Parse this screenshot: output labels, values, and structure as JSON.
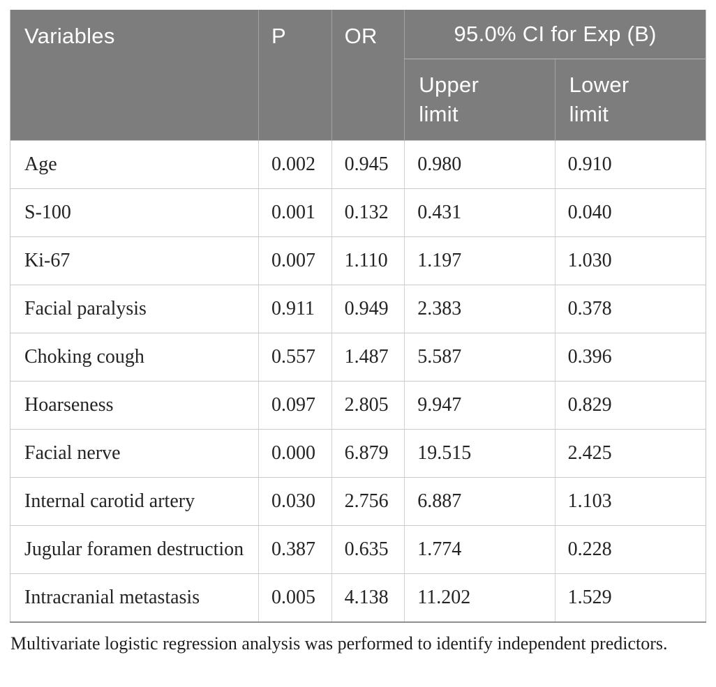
{
  "table": {
    "header": {
      "variables": "Variables",
      "p": "P",
      "or": "OR",
      "ci": "95.0% CI for Exp (B)",
      "upper": "Upper limit",
      "lower": "Lower limit"
    },
    "rows": [
      {
        "variable": "Age",
        "p": "0.002",
        "or": "0.945",
        "upper": "0.980",
        "lower": "0.910"
      },
      {
        "variable": "S-100",
        "p": "0.001",
        "or": "0.132",
        "upper": "0.431",
        "lower": "0.040"
      },
      {
        "variable": "Ki-67",
        "p": "0.007",
        "or": "1.110",
        "upper": "1.197",
        "lower": "1.030"
      },
      {
        "variable": "Facial paralysis",
        "p": "0.911",
        "or": "0.949",
        "upper": "2.383",
        "lower": "0.378"
      },
      {
        "variable": "Choking cough",
        "p": "0.557",
        "or": "1.487",
        "upper": "5.587",
        "lower": "0.396"
      },
      {
        "variable": "Hoarseness",
        "p": "0.097",
        "or": "2.805",
        "upper": "9.947",
        "lower": "0.829"
      },
      {
        "variable": "Facial nerve",
        "p": "0.000",
        "or": "6.879",
        "upper": "19.515",
        "lower": "2.425"
      },
      {
        "variable": "Internal carotid artery",
        "p": "0.030",
        "or": "2.756",
        "upper": "6.887",
        "lower": "1.103"
      },
      {
        "variable": "Jugular foramen destruction",
        "p": "0.387",
        "or": "0.635",
        "upper": "1.774",
        "lower": "0.228"
      },
      {
        "variable": "Intracranial metastasis",
        "p": "0.005",
        "or": "4.138",
        "upper": "11.202",
        "lower": "1.529"
      }
    ],
    "footnote": "Multivariate logistic regression analysis was performed to identify independent predictors."
  },
  "colors": {
    "header_bg": "#7d7d7d",
    "header_text": "#ffffff",
    "header_divider": "#a2a2a2",
    "body_text": "#242424",
    "grid_line": "#c9c9c9",
    "table_bottom_border": "#8f8f8f"
  }
}
